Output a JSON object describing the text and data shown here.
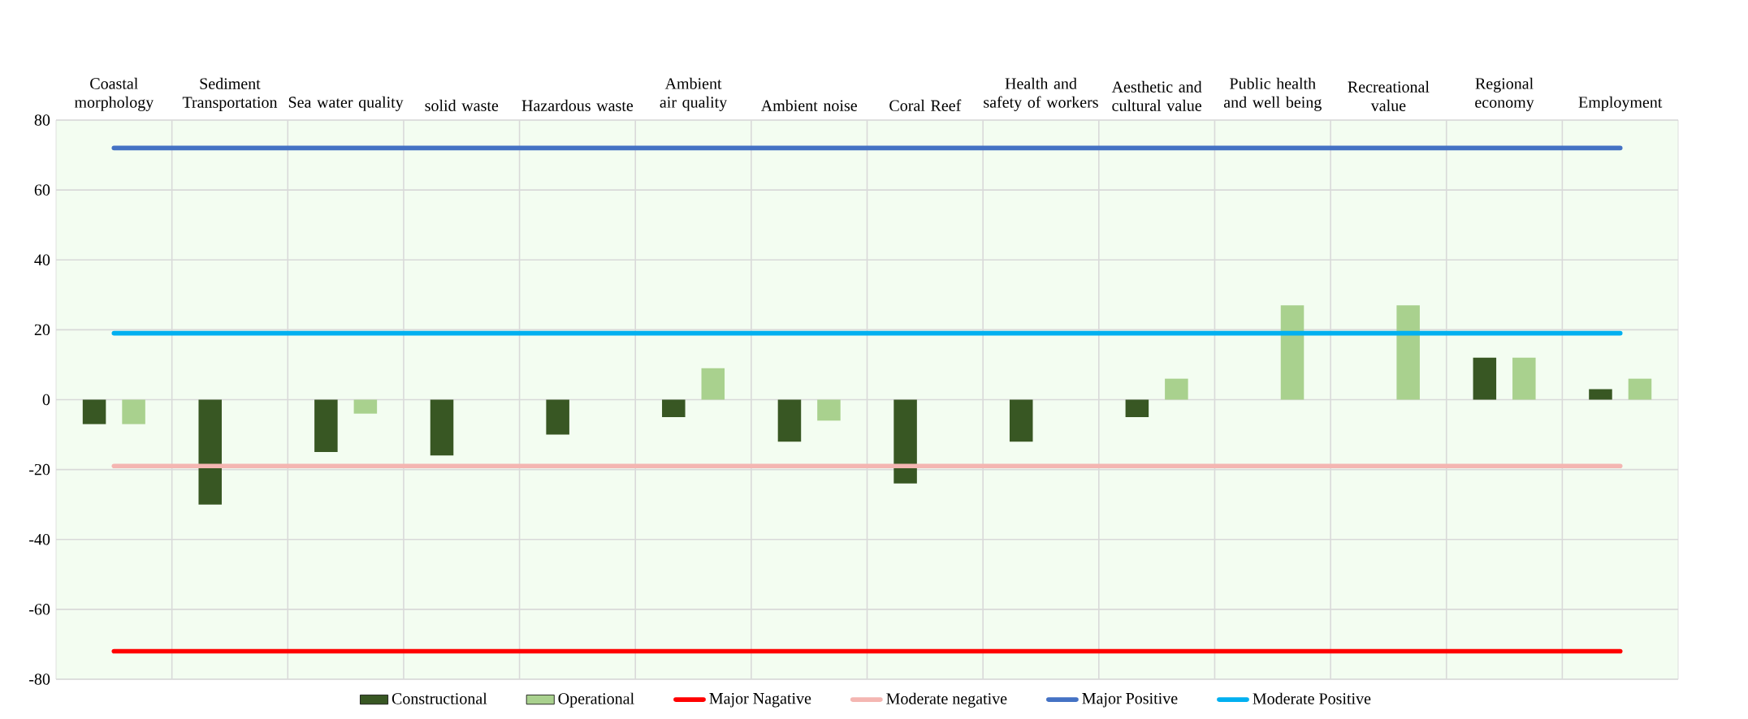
{
  "chart_data": {
    "type": "bar",
    "categories": [
      "Coastal morphology",
      "Sediment Transportation",
      "Sea water quality",
      "solid waste",
      "Hazardous waste",
      "Ambient air quality",
      "Ambient noise",
      "Coral Reef",
      "Health and safety of workers",
      "Aesthetic and cultural value",
      "Public health and well being",
      "Recreational value",
      "Regional economy",
      "Employment"
    ],
    "series": [
      {
        "name": "Constructional",
        "color": "#385723",
        "values": [
          -7,
          -30,
          -15,
          -16,
          -10,
          -5,
          -12,
          -24,
          -12,
          -5,
          null,
          null,
          12,
          3
        ]
      },
      {
        "name": "Operational",
        "color": "#a9d18e",
        "values": [
          -7,
          null,
          -4,
          null,
          null,
          9,
          -6,
          null,
          null,
          6,
          27,
          27,
          12,
          6
        ]
      },
      {
        "name": "Major Nagative",
        "type": "line",
        "color": "#ff0000",
        "values": [
          -72,
          -72,
          -72,
          -72,
          -72,
          -72,
          -72,
          -72,
          -72,
          -72,
          -72,
          -72,
          -72,
          -72
        ]
      },
      {
        "name": "Moderate negative",
        "type": "line",
        "color": "#f4b6b2",
        "values": [
          -19,
          -19,
          -19,
          -19,
          -19,
          -19,
          -19,
          -19,
          -19,
          -19,
          -19,
          -19,
          -19,
          -19
        ]
      },
      {
        "name": "Major Positive",
        "type": "line",
        "color": "#4472c4",
        "values": [
          72,
          72,
          72,
          72,
          72,
          72,
          72,
          72,
          72,
          72,
          72,
          72,
          72,
          72
        ]
      },
      {
        "name": "Moderate Positive",
        "type": "line",
        "color": "#00b0f0",
        "values": [
          19,
          19,
          19,
          19,
          19,
          19,
          19,
          19,
          19,
          19,
          19,
          19,
          19,
          19
        ]
      }
    ],
    "ylim": [
      -80,
      80
    ],
    "yticks": [
      -80,
      -60,
      -40,
      -20,
      0,
      20,
      40,
      60,
      80
    ],
    "grid": true,
    "legend": "bottom",
    "marker": "none"
  }
}
